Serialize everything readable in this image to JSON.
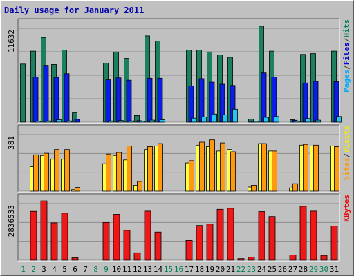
{
  "chart_data": {
    "type": "bar",
    "title": "Daily usage for January 2011",
    "categories": [
      "1",
      "2",
      "3",
      "4",
      "5",
      "6",
      "7",
      "8",
      "9",
      "10",
      "11",
      "12",
      "13",
      "14",
      "15",
      "16",
      "17",
      "18",
      "19",
      "20",
      "21",
      "22",
      "23",
      "24",
      "25",
      "26",
      "27",
      "28",
      "29",
      "30",
      "31"
    ],
    "weekend_days": [
      "1",
      "2",
      "8",
      "9",
      "15",
      "16",
      "22",
      "23",
      "29",
      "30"
    ],
    "panels": [
      {
        "id": "hits",
        "ymax_label": "11632",
        "ymax": 11632,
        "right_label": [
          {
            "text": "Pages",
            "color": "#00aaff"
          },
          {
            "text": "/",
            "color": "#333333"
          },
          {
            "text": "Files",
            "color": "#0000cc"
          },
          {
            "text": "/",
            "color": "#333333"
          },
          {
            "text": "Hits",
            "color": "#008060"
          }
        ],
        "series": [
          {
            "name": "Hits",
            "color": "#1a8060",
            "values": [
              7200,
              8800,
              10500,
              7150,
              8950,
              1150,
              0,
              0,
              7300,
              8700,
              7900,
              830,
              10700,
              10050,
              0,
              0,
              8950,
              8950,
              8700,
              8350,
              8050,
              0,
              380,
              11900,
              8800,
              0,
              300,
              8400,
              8500,
              0,
              8800
            ]
          },
          {
            "name": "Files",
            "color": "#0a1ee8",
            "values": [
              0,
              5600,
              7050,
              5550,
              6000,
              350,
              0,
              0,
              5250,
              5500,
              5200,
              180,
              5450,
              5450,
              0,
              0,
              4500,
              5400,
              4950,
              4700,
              4550,
              0,
              80,
              6100,
              5600,
              0,
              230,
              4850,
              5050,
              0,
              5000
            ]
          },
          {
            "name": "Pages",
            "color": "#22c6ee",
            "values": [
              0,
              100,
              150,
              300,
              150,
              0,
              0,
              0,
              150,
              200,
              150,
              40,
              250,
              300,
              0,
              0,
              500,
              650,
              1000,
              900,
              1600,
              0,
              30,
              600,
              700,
              0,
              60,
              450,
              250,
              0,
              700
            ]
          }
        ]
      },
      {
        "id": "visits",
        "ymax_label": "381",
        "ymax": 381,
        "right_label": [
          {
            "text": "Sites",
            "color": "#ff9900"
          },
          {
            "text": "/",
            "color": "#333333"
          },
          {
            "text": "Visits",
            "color": "#eeee00"
          }
        ],
        "series": [
          {
            "name": "Visits",
            "color": "#ffff44",
            "values": [
              0,
              165,
              240,
              215,
              215,
              10,
              0,
              0,
              185,
              240,
              210,
              40,
              280,
              305,
              0,
              0,
              190,
              310,
              300,
              270,
              280,
              0,
              28,
              320,
              270,
              0,
              22,
              310,
              305,
              0,
              305
            ]
          },
          {
            "name": "Sites",
            "color": "#ff9a10",
            "values": [
              0,
              245,
              255,
              280,
              280,
              25,
              0,
              0,
              250,
              260,
              305,
              65,
              300,
              320,
              0,
              0,
              205,
              330,
              345,
              325,
              265,
              0,
              40,
              320,
              270,
              0,
              50,
              315,
              310,
              0,
              300
            ]
          }
        ]
      },
      {
        "id": "kbytes",
        "ymax_label": "2836533",
        "ymax": 2836533,
        "right_label": [
          {
            "text": "KBytes",
            "color": "#ee0000"
          }
        ],
        "series": [
          {
            "name": "KBytes",
            "color": "#ee1818",
            "values": [
              0,
              2450000,
              2970000,
              1870000,
              2360000,
              120000,
              0,
              0,
              1890000,
              2300000,
              1490000,
              370000,
              2460000,
              1410000,
              0,
              0,
              990000,
              1740000,
              1810000,
              2550000,
              2600000,
              80000,
              150000,
              2440000,
              2190000,
              0,
              260000,
              2700000,
              2460000,
              240000,
              1710000
            ]
          }
        ]
      }
    ]
  }
}
